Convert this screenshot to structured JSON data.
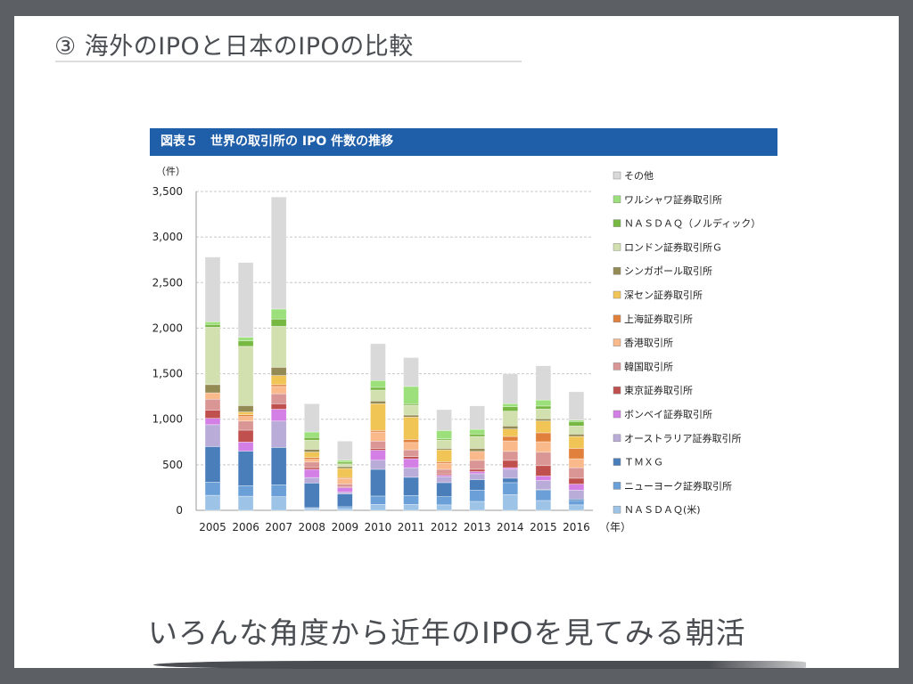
{
  "slide": {
    "title": "③ 海外のIPOと日本のIPOの比較",
    "tagline": "いろんな角度から近年のIPOを見てみる朝活"
  },
  "figure": {
    "header": "図表５　世界の取引所の IPO 件数の推移"
  },
  "chart_data": {
    "type": "bar",
    "stacked": true,
    "title": "図表５　世界の取引所の IPO 件数の推移",
    "ylabel": "（件）",
    "xlabel": "（年）",
    "ylim": [
      0,
      3500
    ],
    "yticks": [
      "0",
      "500",
      "1,000",
      "1,500",
      "2,000",
      "2,500",
      "3,000",
      "3,500"
    ],
    "grid": true,
    "legend": "right",
    "categories": [
      "2005",
      "2006",
      "2007",
      "2008",
      "2009",
      "2010",
      "2011",
      "2012",
      "2013",
      "2014",
      "2015",
      "2016"
    ],
    "series": [
      {
        "name": "ＮＡＳＤＡＱ(米)",
        "color": "#9dc3e6",
        "values": [
          165,
          155,
          150,
          20,
          20,
          65,
          65,
          60,
          98,
          173,
          108,
          60
        ]
      },
      {
        "name": "ニューヨーク証券取引所",
        "color": "#6a9fd8",
        "values": [
          145,
          115,
          130,
          10,
          20,
          92,
          98,
          90,
          124,
          131,
          110,
          48
        ]
      },
      {
        "name": "ＴＭＸＧ",
        "color": "#4a7ebb",
        "values": [
          390,
          380,
          410,
          270,
          140,
          293,
          200,
          154,
          115,
          49,
          10,
          16
        ]
      },
      {
        "name": "オーストラリア証券取引所",
        "color": "#b9acd8",
        "values": [
          240,
          0,
          290,
          60,
          20,
          100,
          105,
          66,
          65,
          98,
          100,
          98
        ]
      },
      {
        "name": "ボンベイ証券取引所",
        "color": "#d47fe6",
        "values": [
          70,
          100,
          130,
          90,
          50,
          110,
          98,
          16,
          23,
          17,
          49,
          66
        ]
      },
      {
        "name": "東京証券取引所",
        "color": "#c0504d",
        "values": [
          90,
          130,
          60,
          20,
          10,
          20,
          24,
          14,
          26,
          81,
          114,
          65
        ]
      },
      {
        "name": "韓国取引所",
        "color": "#d99694",
        "values": [
          120,
          100,
          110,
          60,
          30,
          80,
          74,
          50,
          98,
          98,
          147,
          115
        ]
      },
      {
        "name": "香港取引所",
        "color": "#f9b98a",
        "values": [
          70,
          50,
          80,
          30,
          60,
          100,
          81,
          67,
          98,
          115,
          115,
          98
        ]
      },
      {
        "name": "上海証券取引所",
        "color": "#e0803c",
        "values": [
          0,
          20,
          20,
          20,
          10,
          16,
          33,
          16,
          0,
          49,
          98,
          114
        ]
      },
      {
        "name": "深セン証券取引所",
        "color": "#f0c556",
        "values": [
          0,
          30,
          100,
          60,
          100,
          294,
          245,
          131,
          0,
          82,
          131,
          131
        ]
      },
      {
        "name": "シンガポール取引所",
        "color": "#948a54",
        "values": [
          90,
          70,
          90,
          30,
          20,
          30,
          23,
          16,
          33,
          33,
          23,
          26
        ]
      },
      {
        "name": "ロンドン証券取引所Ｇ",
        "color": "#d2e0b0",
        "values": [
          630,
          650,
          450,
          100,
          30,
          120,
          108,
          92,
          131,
          163,
          107,
          89
        ]
      },
      {
        "name": "ＮＡＳＤＡＱ（ノルディック）",
        "color": "#77b843",
        "values": [
          30,
          60,
          80,
          30,
          20,
          30,
          16,
          13,
          26,
          49,
          33,
          48
        ]
      },
      {
        "name": "ワルシャワ証券取引所",
        "color": "#9be07a",
        "values": [
          30,
          40,
          110,
          60,
          20,
          75,
          190,
          91,
          52,
          33,
          66,
          17
        ]
      },
      {
        "name": "その他",
        "color": "#d9d9d9",
        "values": [
          710,
          820,
          1230,
          310,
          210,
          405,
          317,
          229,
          258,
          327,
          376,
          311
        ]
      }
    ]
  }
}
